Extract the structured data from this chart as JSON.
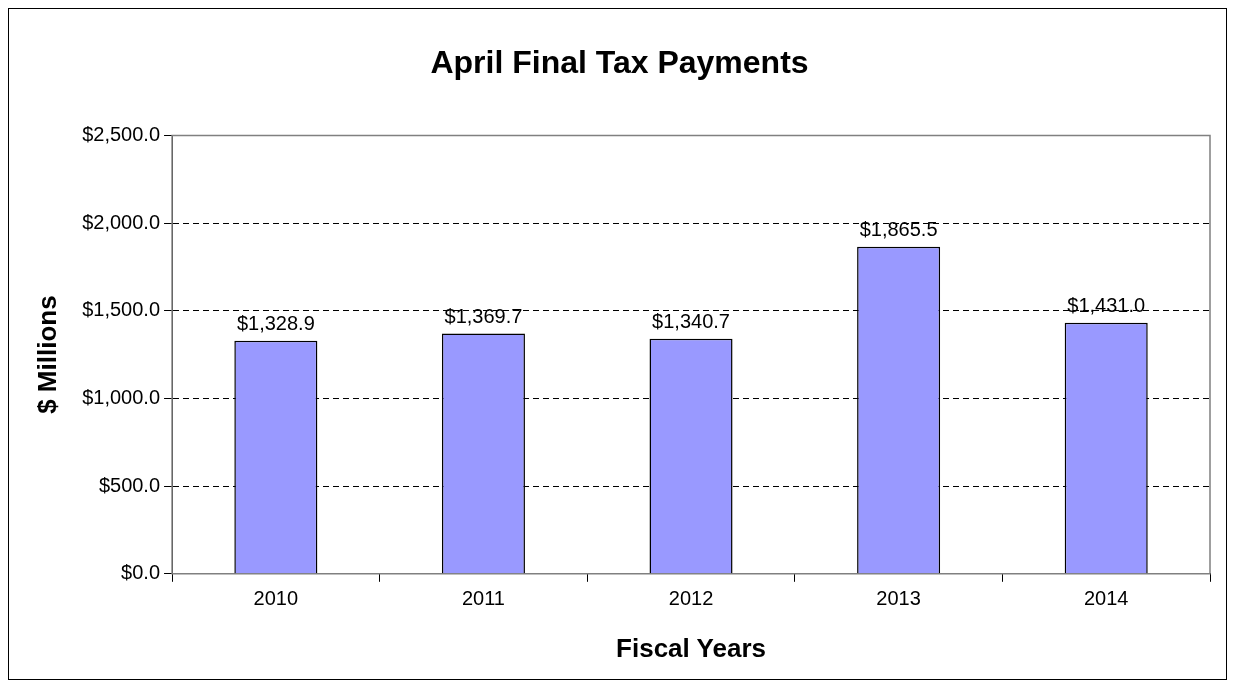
{
  "chart_data": {
    "type": "bar",
    "title": "April Final Tax Payments",
    "xlabel": "Fiscal Years",
    "ylabel": "$ Millions",
    "categories": [
      "2010",
      "2011",
      "2012",
      "2013",
      "2014"
    ],
    "values": [
      1328.9,
      1369.7,
      1340.7,
      1865.5,
      1431.0
    ],
    "value_labels": [
      "$1,328.9",
      "$1,369.7",
      "$1,340.7",
      "$1,865.5",
      "$1,431.0"
    ],
    "color": "#9999ff",
    "ylim": [
      0,
      2500
    ],
    "yticks": [
      {
        "value": 0,
        "label": "$0.0"
      },
      {
        "value": 500,
        "label": "$500.0"
      },
      {
        "value": 1000,
        "label": "$1,000.0"
      },
      {
        "value": 1500,
        "label": "$1,500.0"
      },
      {
        "value": 2000,
        "label": "$2,000.0"
      },
      {
        "value": 2500,
        "label": "$2,500.0"
      }
    ],
    "grid": "y",
    "legend": false
  }
}
